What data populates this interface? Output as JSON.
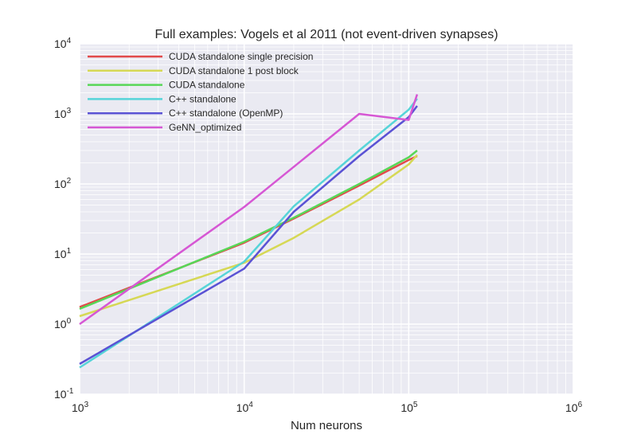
{
  "chart_data": {
    "type": "line",
    "title": "Full examples: Vogels et al 2011 (not event-driven synapses)",
    "xlabel": "Num neurons",
    "ylabel": "",
    "xscale": "log",
    "yscale": "log",
    "xlim": [
      1000,
      1000000
    ],
    "ylim": [
      0.1,
      10000
    ],
    "x_ticks": [
      {
        "base": "10",
        "exp": "3",
        "value": 1000
      },
      {
        "base": "10",
        "exp": "4",
        "value": 10000
      },
      {
        "base": "10",
        "exp": "5",
        "value": 100000
      },
      {
        "base": "10",
        "exp": "6",
        "value": 1000000
      }
    ],
    "y_ticks": [
      {
        "base": "10",
        "exp": "-1",
        "value": 0.1
      },
      {
        "base": "10",
        "exp": "0",
        "value": 1
      },
      {
        "base": "10",
        "exp": "1",
        "value": 10
      },
      {
        "base": "10",
        "exp": "2",
        "value": 100
      },
      {
        "base": "10",
        "exp": "3",
        "value": 1000
      },
      {
        "base": "10",
        "exp": "4",
        "value": 10000
      }
    ],
    "grid": true,
    "legend_position": "top-left",
    "background": "#eaeaf2",
    "series": [
      {
        "name": "CUDA standalone single precision",
        "color": "#e24a4a",
        "points": [
          [
            1000,
            1.75
          ],
          [
            10000,
            14.5
          ],
          [
            20000,
            32
          ],
          [
            50000,
            95
          ],
          [
            100000,
            220
          ],
          [
            112500,
            250
          ]
        ]
      },
      {
        "name": "CUDA standalone 1 post block",
        "color": "#d6d855",
        "points": [
          [
            1000,
            1.3
          ],
          [
            10000,
            7.5
          ],
          [
            20000,
            17
          ],
          [
            50000,
            60
          ],
          [
            100000,
            190
          ],
          [
            112500,
            260
          ]
        ]
      },
      {
        "name": "CUDA standalone",
        "color": "#57d757",
        "points": [
          [
            1000,
            1.65
          ],
          [
            10000,
            15
          ],
          [
            20000,
            33
          ],
          [
            50000,
            100
          ],
          [
            100000,
            240
          ],
          [
            112500,
            300
          ]
        ]
      },
      {
        "name": "C++ standalone",
        "color": "#56d4d8",
        "points": [
          [
            1000,
            0.24
          ],
          [
            10000,
            7.8
          ],
          [
            20000,
            48
          ],
          [
            50000,
            300
          ],
          [
            100000,
            1150
          ],
          [
            112500,
            1650
          ]
        ]
      },
      {
        "name": "C++ standalone (OpenMP)",
        "color": "#5a52d4",
        "points": [
          [
            1000,
            0.27
          ],
          [
            10000,
            6.2
          ],
          [
            20000,
            40
          ],
          [
            50000,
            250
          ],
          [
            100000,
            900
          ],
          [
            112500,
            1300
          ]
        ]
      },
      {
        "name": "GeNN_optimized",
        "color": "#d657d4",
        "points": [
          [
            1000,
            1.0
          ],
          [
            10000,
            47
          ],
          [
            50000,
            1000
          ],
          [
            100000,
            820
          ],
          [
            112500,
            1900
          ]
        ]
      }
    ]
  }
}
